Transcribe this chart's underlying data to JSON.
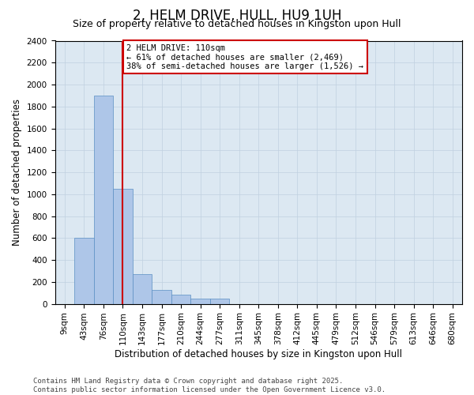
{
  "title": "2, HELM DRIVE, HULL, HU9 1UH",
  "subtitle": "Size of property relative to detached houses in Kingston upon Hull",
  "xlabel": "Distribution of detached houses by size in Kingston upon Hull",
  "ylabel": "Number of detached properties",
  "bin_labels": [
    "9sqm",
    "43sqm",
    "76sqm",
    "110sqm",
    "143sqm",
    "177sqm",
    "210sqm",
    "244sqm",
    "277sqm",
    "311sqm",
    "345sqm",
    "378sqm",
    "412sqm",
    "445sqm",
    "479sqm",
    "512sqm",
    "546sqm",
    "579sqm",
    "613sqm",
    "646sqm",
    "680sqm"
  ],
  "bar_values": [
    0,
    600,
    1900,
    1050,
    270,
    130,
    80,
    50,
    50,
    0,
    0,
    0,
    0,
    0,
    0,
    0,
    0,
    0,
    0,
    0,
    0
  ],
  "bar_color": "#aec6e8",
  "bar_edge_color": "#5a8fc3",
  "vline_x_idx": 3,
  "vline_color": "#cc0000",
  "annotation_text": "2 HELM DRIVE: 110sqm\n← 61% of detached houses are smaller (2,469)\n38% of semi-detached houses are larger (1,526) →",
  "annotation_box_edgecolor": "#cc0000",
  "ylim_max": 2400,
  "yticks": [
    0,
    200,
    400,
    600,
    800,
    1000,
    1200,
    1400,
    1600,
    1800,
    2000,
    2200,
    2400
  ],
  "grid_color": "#c0d0e0",
  "axes_bg_color": "#dce8f2",
  "footer": "Contains HM Land Registry data © Crown copyright and database right 2025.\nContains public sector information licensed under the Open Government Licence v3.0.",
  "title_fontsize": 12,
  "subtitle_fontsize": 9,
  "axis_label_fontsize": 8.5,
  "tick_fontsize": 7.5,
  "footer_fontsize": 6.5,
  "ann_fontsize": 7.5
}
